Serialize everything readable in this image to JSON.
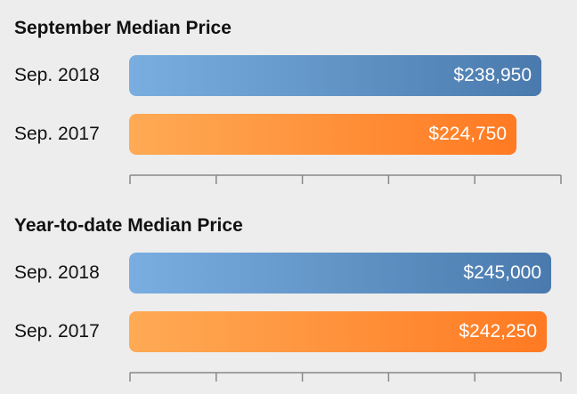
{
  "colors": {
    "series_2018_start": "#7aaee0",
    "series_2018_end": "#4a7aad",
    "series_2017_start": "#ffaa55",
    "series_2017_end": "#ff7a22",
    "axis": "#888888",
    "background": "#ededed"
  },
  "chart_data": [
    {
      "type": "bar",
      "orientation": "horizontal",
      "title": "September Median Price",
      "categories": [
        "Sep. 2018",
        "Sep. 2017"
      ],
      "values": [
        238950,
        224750
      ],
      "value_labels": [
        "$238,950",
        "$224,750"
      ],
      "xlim": [
        0,
        250000
      ],
      "grid": false,
      "axis_ticks": 6
    },
    {
      "type": "bar",
      "orientation": "horizontal",
      "title": "Year-to-date Median Price",
      "categories": [
        "Sep. 2018",
        "Sep. 2017"
      ],
      "values": [
        245000,
        242250
      ],
      "value_labels": [
        "$245,000",
        "$242,250"
      ],
      "xlim": [
        0,
        250000
      ],
      "grid": false,
      "axis_ticks": 6
    }
  ]
}
